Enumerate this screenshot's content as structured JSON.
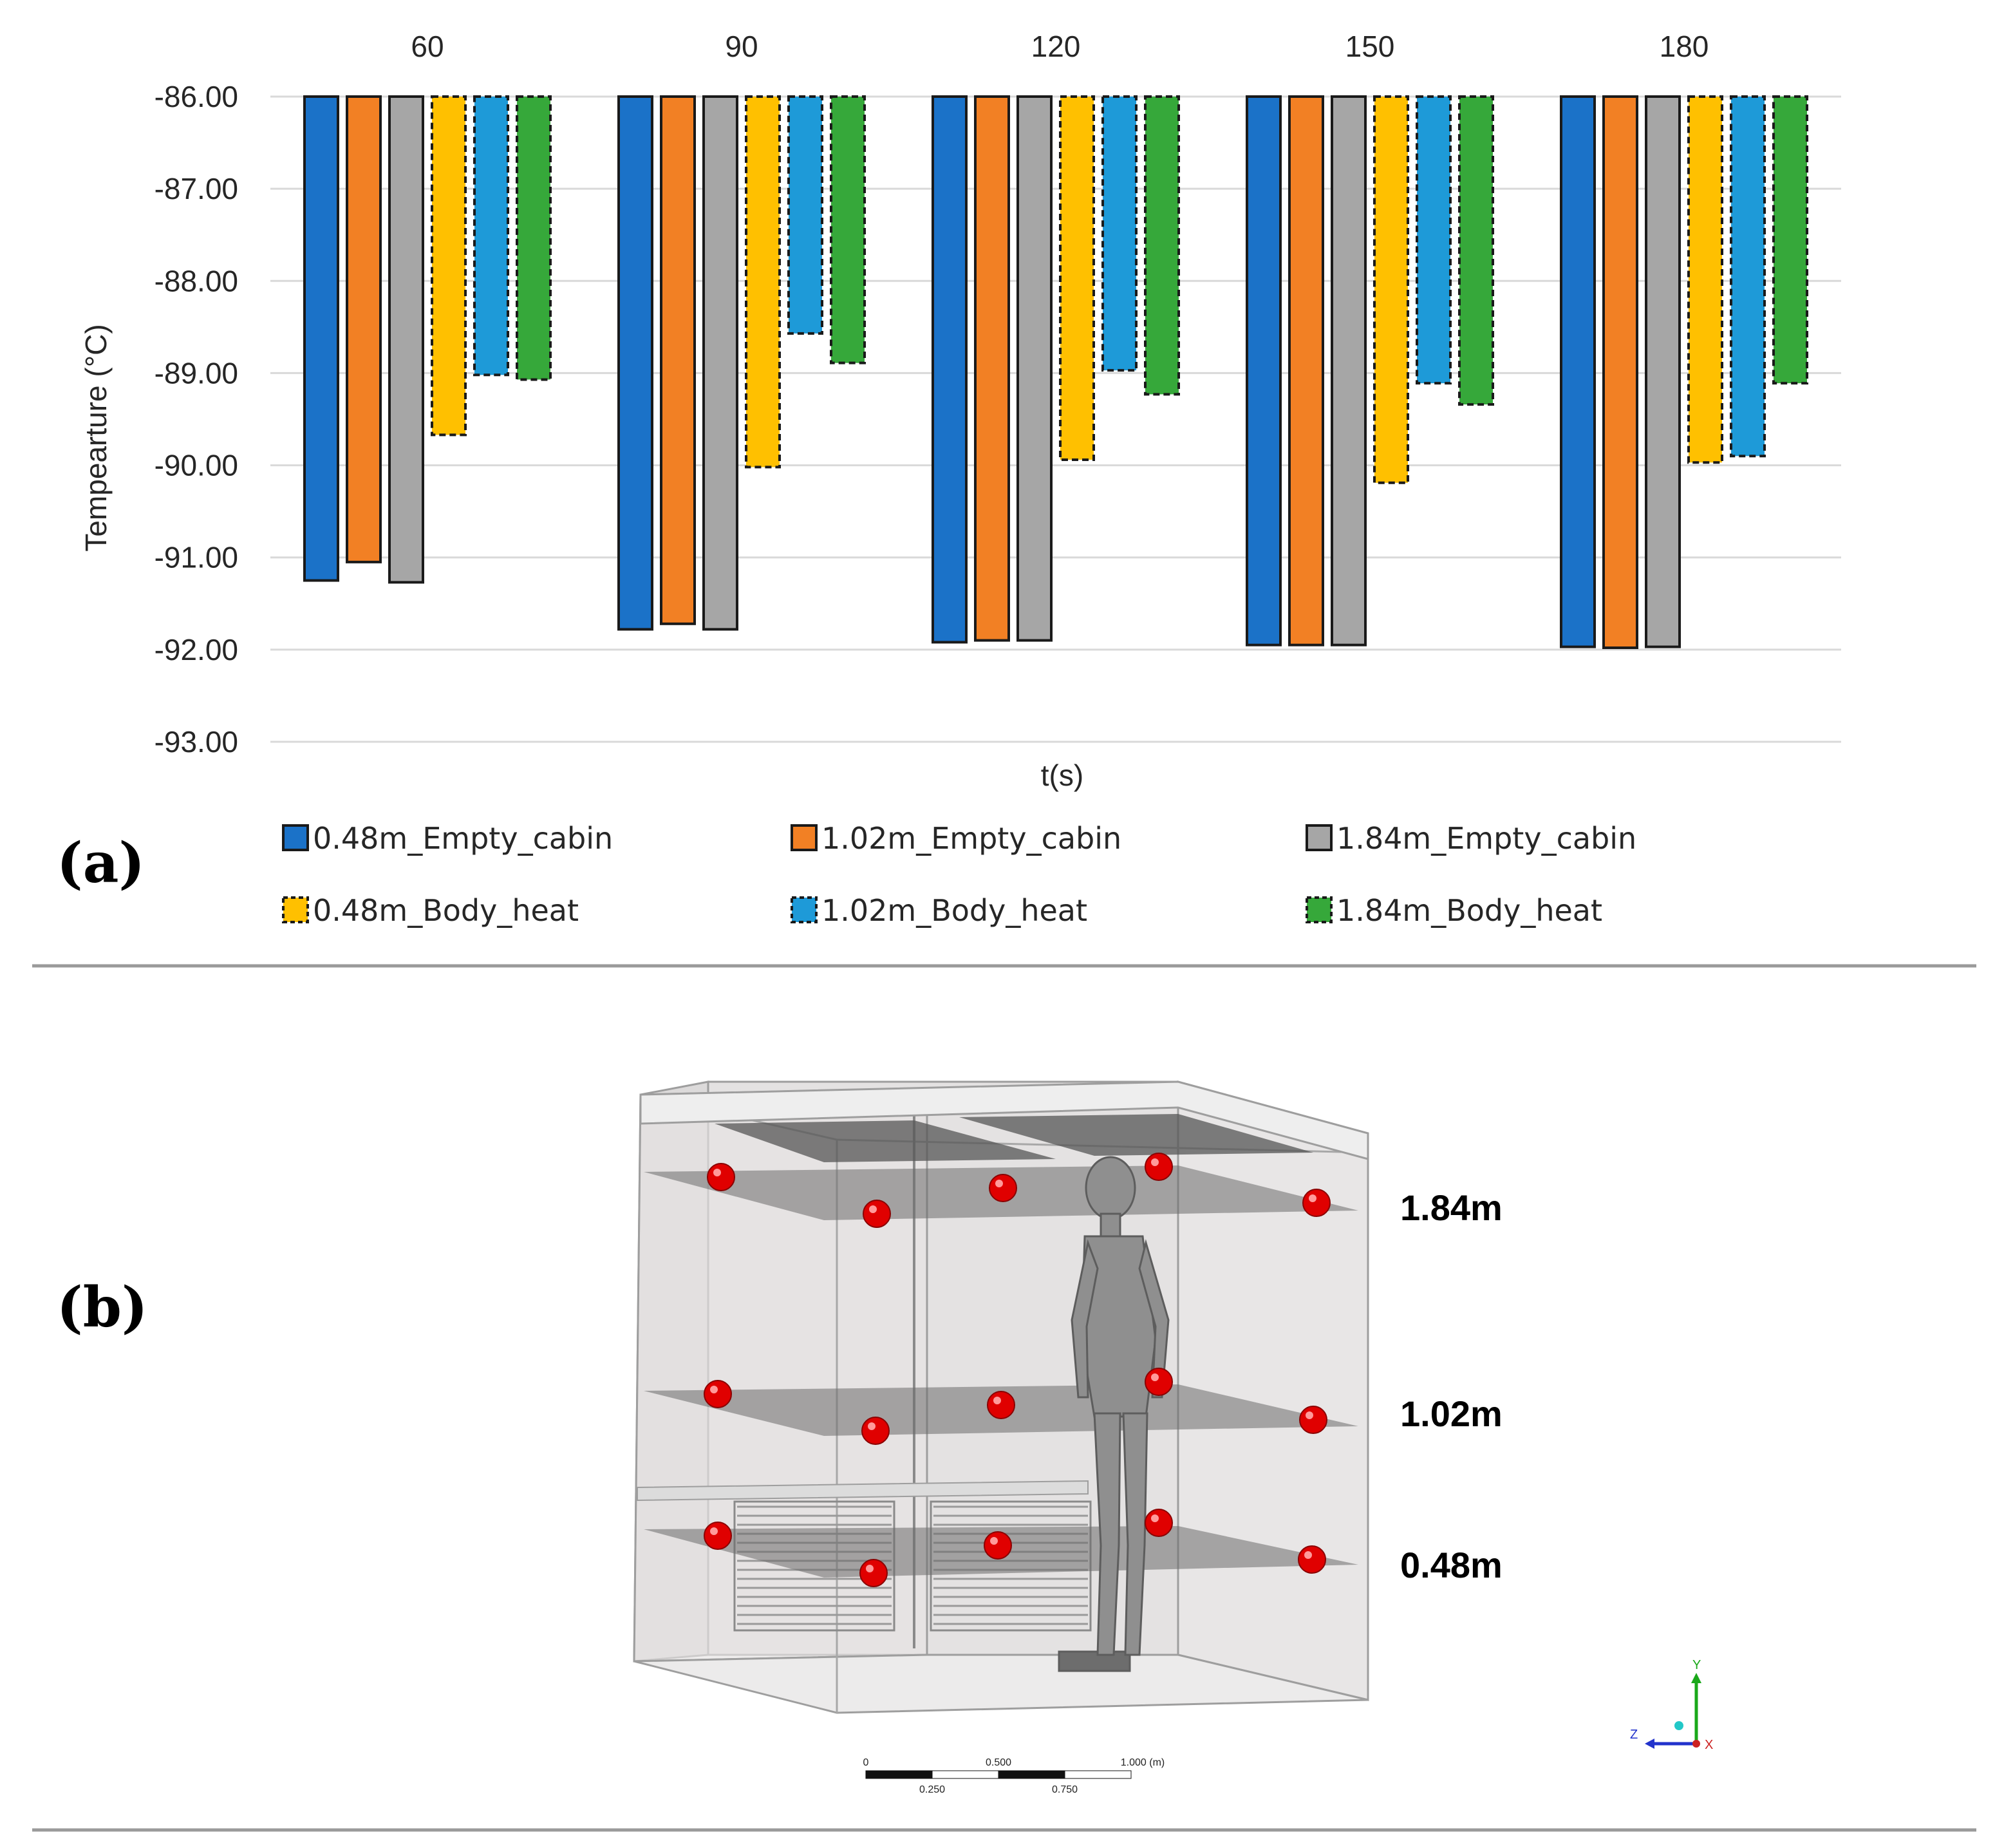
{
  "chart_data": {
    "type": "bar",
    "categories": [
      "60",
      "90",
      "120",
      "150",
      "180"
    ],
    "category_position": "top",
    "ylabel": "Tempearture (°C)",
    "xlabel": "t(s)",
    "ylim": [
      -93,
      -86
    ],
    "yticks": [
      "-86.00",
      "-87.00",
      "-88.00",
      "-89.00",
      "-90.00",
      "-91.00",
      "-92.00",
      "-93.00"
    ],
    "bar_base": -86,
    "grid": true,
    "legend_position": "bottom",
    "series": [
      {
        "name": "0.48m_Empty_cabin",
        "color": "#1B72C8",
        "dashed": false,
        "values": [
          -91.25,
          -91.78,
          -91.92,
          -91.95,
          -91.97
        ]
      },
      {
        "name": "1.02m_Empty_cabin",
        "color": "#F28024",
        "dashed": false,
        "values": [
          -91.05,
          -91.72,
          -91.9,
          -91.95,
          -91.98
        ]
      },
      {
        "name": "1.84m_Empty_cabin",
        "color": "#A6A6A6",
        "dashed": false,
        "values": [
          -91.27,
          -91.78,
          -91.9,
          -91.95,
          -91.97
        ]
      },
      {
        "name": "0.48m_Body_heat",
        "color": "#FFC000",
        "dashed": true,
        "values": [
          -89.67,
          -90.02,
          -89.94,
          -90.19,
          -89.97
        ]
      },
      {
        "name": "1.02m_Body_heat",
        "color": "#1E9AD8",
        "dashed": true,
        "values": [
          -89.02,
          -88.57,
          -88.97,
          -89.11,
          -89.9
        ]
      },
      {
        "name": "1.84m_Body_heat",
        "color": "#36A83A",
        "dashed": true,
        "values": [
          -89.07,
          -88.89,
          -89.23,
          -89.34,
          -89.11
        ]
      }
    ]
  },
  "panels": {
    "a_label": "(a)",
    "b_label": "(b)"
  },
  "diagram": {
    "levels": [
      "1.84m",
      "1.02m",
      "0.48m"
    ],
    "sensor_color": "#E00000",
    "scale_bar": {
      "top_labels": [
        "0",
        "0.500",
        "1.000 (m)"
      ],
      "bottom_labels": [
        "0.250",
        "0.750"
      ]
    },
    "triad": {
      "y": "Y",
      "z": "Z",
      "x": "X"
    }
  }
}
